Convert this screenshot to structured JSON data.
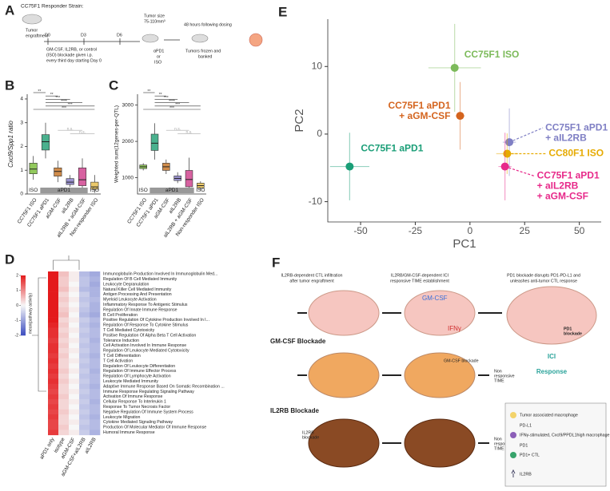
{
  "panel_letters": [
    "A",
    "B",
    "C",
    "D",
    "E",
    "F"
  ],
  "panel_a": {
    "strain": "CC75F1 Responder Strain:",
    "engraftment": [
      "Tumor",
      "engraftment"
    ],
    "days": [
      "D0",
      "D3",
      "D6"
    ],
    "treatment": [
      "GM-CSF, IL2RB, or control",
      "(ISO) blockade given i.p.",
      "every third day starting Day 0"
    ],
    "tumor_size": [
      "Tumor size",
      "75-110mm³"
    ],
    "dosing": [
      "αPD1",
      "or",
      "ISO"
    ],
    "after": "48 hours following dosing",
    "banked": [
      "Tumors frozen and",
      "banked"
    ]
  },
  "chart_data": [
    {
      "type": "box",
      "ylabel": "Cxcl9/Spp1 ratio",
      "categories": [
        "CC75F1 ISO",
        "CC75F1 aPD1",
        "aGM-CSF",
        "aIL2RB",
        "aIL2RB + aGM-CSF",
        "Non-responder ISO"
      ],
      "colors": [
        "#7fbf3f",
        "#2aa37a",
        "#c8782c",
        "#8a80c8",
        "#d0458f",
        "#e8c050"
      ],
      "boxes": [
        [
          0.6,
          0.85,
          1.05,
          1.3,
          1.6
        ],
        [
          1.5,
          1.85,
          2.2,
          2.5,
          3.0
        ],
        [
          0.5,
          0.75,
          0.95,
          1.1,
          1.4
        ],
        [
          0.3,
          0.4,
          0.5,
          0.65,
          0.8
        ],
        [
          0.1,
          0.35,
          0.6,
          1.1,
          1.5
        ],
        [
          0.05,
          0.2,
          0.3,
          0.5,
          0.8
        ]
      ],
      "ylim": [
        0,
        4.2
      ],
      "yticks": [
        0,
        1,
        2,
        3,
        4
      ],
      "groups": [
        "ISO",
        "aPD1",
        "ISO"
      ],
      "significance": [
        "**",
        "**",
        "***",
        "****",
        "***",
        "***",
        "n.s.",
        "n.s."
      ]
    },
    {
      "type": "box",
      "ylabel": "Weighted sum(12genes-per-QTL)",
      "categories": [
        "CC75F1 ISO",
        "CC75F1 aPD1",
        "aGM-CSF",
        "aIL2RB",
        "aIL2RB + aGM-CSF",
        "Non-responder ISO"
      ],
      "colors": [
        "#7fbf3f",
        "#2aa37a",
        "#c8782c",
        "#8a80c8",
        "#d0458f",
        "#e8c050"
      ],
      "boxes": [
        [
          1200,
          1250,
          1300,
          1350,
          1400
        ],
        [
          1500,
          1750,
          1950,
          2200,
          2500
        ],
        [
          1100,
          1200,
          1300,
          1400,
          1500
        ],
        [
          850,
          920,
          980,
          1050,
          1150
        ],
        [
          600,
          750,
          950,
          1200,
          1550
        ],
        [
          650,
          720,
          780,
          850,
          900
        ]
      ],
      "ylim": [
        550,
        3300
      ],
      "yticks": [
        1000,
        2000,
        3000
      ],
      "groups": [
        "ISO",
        "aPD1",
        "ISO"
      ],
      "significance": [
        "**",
        "**",
        "***",
        "****",
        "***",
        "***",
        "n.s.",
        "n.s."
      ]
    },
    {
      "type": "scatter",
      "xlabel": "PC1",
      "ylabel": "PC2",
      "xlim": [
        -65,
        60
      ],
      "ylim": [
        -13,
        17
      ],
      "xticks": [
        -50,
        -25,
        0,
        25,
        50
      ],
      "yticks": [
        -10,
        0,
        10
      ],
      "points": [
        {
          "label": [
            "CC75F1 ISO"
          ],
          "color": "#7cba5a",
          "x": -7,
          "y": 9.8,
          "xerr": 12,
          "yerr": 6.5
        },
        {
          "label": [
            "CC75F1 aPD1",
            "+ aGM-CSF"
          ],
          "color": "#d4641e",
          "x": -4.5,
          "y": 2.7,
          "xerr": 2,
          "yerr": 5
        },
        {
          "label": [
            "CC75F1 aPD1"
          ],
          "color": "#1a9e77",
          "x": -55,
          "y": -4.8,
          "xerr": 9,
          "yerr": 5
        },
        {
          "label": [
            "CC75F1 aPD1",
            "+ aIL2RB"
          ],
          "color": "#7f7fc4",
          "x": 18,
          "y": -1.2,
          "xerr": 3,
          "yerr": 5
        },
        {
          "label": [
            "CC80F1 ISO"
          ],
          "color": "#e6ab02",
          "x": 17,
          "y": -2.9,
          "xerr": 5,
          "yerr": 3
        },
        {
          "label": [
            "CC75F1 aPD1",
            "+ aIL2RB",
            "+ aGM-CSF"
          ],
          "color": "#e7298a",
          "x": 16,
          "y": -4.8,
          "xerr": 3,
          "yerr": 5
        }
      ]
    },
    {
      "type": "heatmap",
      "colorbar_label": "mean(pathway activity)",
      "clim": [
        -2,
        2
      ],
      "colorbar_ticks": [
        2,
        1,
        0,
        -1,
        -2
      ],
      "colors": [
        "#3b4cc0",
        "#f7f7f7",
        "#e41a1c"
      ],
      "columns": [
        "aPD1 only",
        "isotype",
        "aGM-CSF",
        "aGM-CSF+aIL2RB",
        "aIL2RB"
      ],
      "rows": [
        "Immunoglobulin Production Involved In Immunoglobulin Med...",
        "Regulation Of B Cell Mediated Immunity",
        "Leukocyte Degranulation",
        "Natural Killer Cell Mediated Immunity",
        "Antigen Processing And Presentation",
        "Myeloid Leukocyte Activation",
        "Inflammatory Response To Antigenic Stimulus",
        "Regulation Of Innate Immune Response",
        "B Cell Proliferation",
        "Positive Regulation Of Cytokine Production Involved In I...",
        "Regulation Of Response To Cytokine Stimulus",
        "T Cell Mediated Cytotoxicity",
        "Positive Regulation Of Alpha Beta T Cell Activation",
        "Tolerance Induction",
        "Cell Activation Involved In Immune Response",
        "Regulation Of Leukocyte Mediated Cytotoxicity",
        "T Cell Differentiation",
        "T Cell Activation",
        "Regulation Of Leukocyte Differentiation",
        "Regulation Of Immune Effector Process",
        "Regulation Of Lymphocyte Activation",
        "Leukocyte Mediated Immunity",
        "Adaptive Immune Response Based On Somatic Recombination ...",
        "Immune Response Regulating Signaling Pathway",
        "Activation Of Immune Response",
        "Cellular Response To Interleukin 1",
        "Response To Tumor Necrosis Factor",
        "Negative Regulation Of Immune System Process",
        "Leukocyte Migration",
        "Cytokine Mediated Signaling Pathway",
        "Production Of Molecular Mediator Of Immune Response",
        "Humoral Immune Response"
      ],
      "values": [
        [
          2.3,
          0.5,
          0.1,
          -0.7,
          -0.9
        ],
        [
          2.2,
          0.4,
          0.1,
          -0.6,
          -0.8
        ],
        [
          2.1,
          0.4,
          0.0,
          -0.6,
          -0.9
        ],
        [
          2.2,
          0.5,
          0.1,
          -0.7,
          -0.8
        ],
        [
          2.1,
          0.3,
          0.0,
          -0.5,
          -0.8
        ],
        [
          2.0,
          0.4,
          0.1,
          -0.6,
          -0.7
        ],
        [
          2.1,
          0.3,
          0.0,
          -0.5,
          -0.8
        ],
        [
          2.0,
          0.4,
          0.1,
          -0.6,
          -0.8
        ],
        [
          2.2,
          0.5,
          0.0,
          -0.7,
          -0.9
        ],
        [
          2.0,
          0.3,
          0.1,
          -0.5,
          -0.7
        ],
        [
          1.9,
          0.4,
          0.0,
          -0.6,
          -0.8
        ],
        [
          1.8,
          0.3,
          0.1,
          -0.5,
          -0.7
        ],
        [
          1.8,
          0.4,
          0.0,
          -0.6,
          -0.7
        ],
        [
          1.7,
          0.3,
          0.1,
          -0.5,
          -0.8
        ],
        [
          1.8,
          0.4,
          0.0,
          -0.6,
          -0.7
        ],
        [
          1.8,
          0.3,
          0.1,
          -0.5,
          -0.7
        ],
        [
          1.7,
          0.4,
          0.0,
          -0.6,
          -0.8
        ],
        [
          1.8,
          0.3,
          0.1,
          -0.5,
          -0.7
        ],
        [
          1.7,
          0.3,
          0.0,
          -0.6,
          -0.7
        ],
        [
          1.8,
          0.4,
          0.1,
          -0.5,
          -0.8
        ],
        [
          1.7,
          0.3,
          0.0,
          -0.6,
          -0.7
        ],
        [
          1.8,
          0.4,
          0.1,
          -0.5,
          -0.7
        ],
        [
          1.7,
          0.3,
          0.0,
          -0.6,
          -0.8
        ],
        [
          1.6,
          0.3,
          0.1,
          -0.5,
          -0.7
        ],
        [
          1.7,
          0.4,
          0.0,
          -0.6,
          -0.7
        ],
        [
          1.6,
          0.3,
          0.1,
          -0.5,
          -0.8
        ],
        [
          1.7,
          0.3,
          0.0,
          -0.6,
          -0.7
        ],
        [
          1.6,
          0.4,
          0.1,
          -0.5,
          -0.7
        ],
        [
          1.7,
          0.3,
          0.0,
          -0.6,
          -0.8
        ],
        [
          1.6,
          0.3,
          0.1,
          -0.5,
          -0.7
        ],
        [
          1.6,
          0.4,
          0.0,
          -0.6,
          -0.7
        ],
        [
          1.7,
          0.3,
          0.1,
          -0.5,
          -0.8
        ]
      ]
    }
  ],
  "panel_f": {
    "headers": [
      [
        "IL2RB-dependent CTL infiltration",
        "after tumor engraftment"
      ],
      [
        "IL2RB/GM-CSF-dependent ICI",
        "responsive TIME establishment"
      ],
      [
        "PD1 blockade disrupts PD1-PD-L1 and",
        "unleashes anti-tumor CTL response"
      ]
    ],
    "gmcsf": "GM-CSF",
    "ifng": "IFNγ",
    "gm_row": "GM-CSF Blockade",
    "gm_tag": "GM-CSF blockade",
    "non_responsive_1": [
      "Non",
      "responsive",
      "TIME"
    ],
    "il_row": "IL2RB Blockade",
    "il_tag": [
      "IL2RB",
      "blockade"
    ],
    "non_responsive_2": [
      "Non",
      "responsive",
      "TIME"
    ],
    "pd1_tag": [
      "PD1",
      "blockade"
    ],
    "response": [
      "ICI",
      "Response"
    ],
    "legend": {
      "tam": "Tumor associated macrophage",
      "pdl1": "PD-L1",
      "ifn_mac": "IFNγ-stimulated, Cxcl9/PPDL1high macrophage",
      "pd1": "PD1",
      "ctl": "PD1+ CTL",
      "il2rb": "IL2RB"
    }
  }
}
